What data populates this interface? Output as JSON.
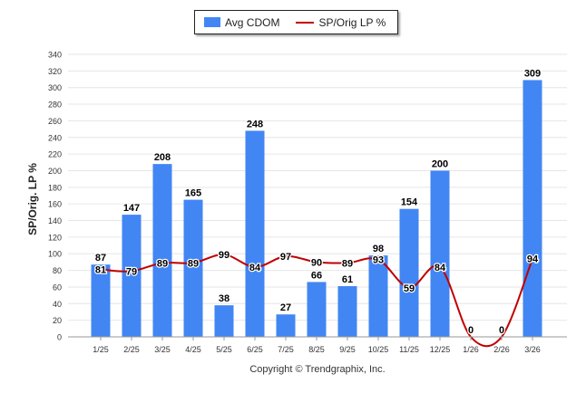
{
  "chart_data": {
    "type": "bar",
    "title": "",
    "xlabel": "",
    "ylabel": "SP/Orig. LP %",
    "ylim": [
      0,
      340
    ],
    "yticks": [
      0,
      20,
      40,
      60,
      80,
      100,
      120,
      140,
      160,
      180,
      200,
      220,
      240,
      260,
      280,
      300,
      320,
      340
    ],
    "grid": true,
    "legend_position": "top-center",
    "categories": [
      "1/25",
      "2/25",
      "3/25",
      "4/25",
      "5/25",
      "6/25",
      "7/25",
      "8/25",
      "9/25",
      "10/25",
      "11/25",
      "12/25",
      "1/26",
      "2/26",
      "3/26"
    ],
    "series": [
      {
        "name": "Avg CDOM",
        "type": "bar",
        "color": "#4286f4",
        "values": [
          87,
          147,
          208,
          165,
          38,
          248,
          27,
          66,
          61,
          98,
          154,
          200,
          0,
          0,
          309
        ]
      },
      {
        "name": "SP/Orig LP %",
        "type": "line",
        "color": "#c00000",
        "values": [
          81,
          79,
          89,
          89,
          99,
          84,
          97,
          90,
          89,
          93,
          59,
          84,
          0,
          0,
          94
        ]
      }
    ]
  },
  "footer": {
    "copyright": "Copyright © Trendgraphix, Inc."
  }
}
